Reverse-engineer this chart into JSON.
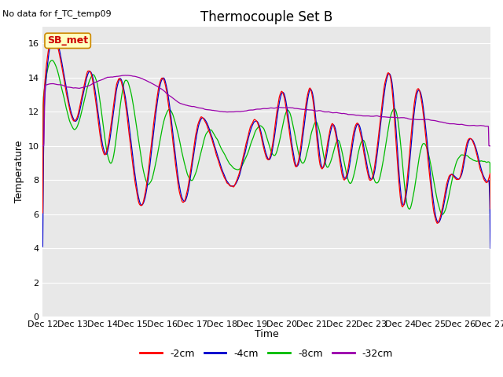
{
  "title": "Thermocouple Set B",
  "xlabel": "Time",
  "ylabel": "Temperature",
  "no_data_text": "No data for f_TC_temp09",
  "sb_met_label": "SB_met",
  "ylim": [
    0,
    17
  ],
  "yticks": [
    0,
    2,
    4,
    6,
    8,
    10,
    12,
    14,
    16
  ],
  "xtick_days": [
    12,
    13,
    14,
    15,
    16,
    17,
    18,
    19,
    20,
    21,
    22,
    23,
    24,
    25,
    26,
    27
  ],
  "colors": {
    "red": "#ff0000",
    "blue": "#0000cc",
    "green": "#00bb00",
    "purple": "#9900aa",
    "bg_plot": "#e8e8e8",
    "bg_fig": "#ffffff",
    "sb_met_bg": "#ffffc0",
    "sb_met_border": "#cc8800",
    "sb_met_text": "#cc0000"
  },
  "legend_items": [
    {
      "label": "-2cm",
      "color": "#ff0000"
    },
    {
      "label": "-4cm",
      "color": "#0000cc"
    },
    {
      "label": "-8cm",
      "color": "#00bb00"
    },
    {
      "label": "-32cm",
      "color": "#9900aa"
    }
  ],
  "title_fontsize": 12,
  "axis_label_fontsize": 9,
  "tick_fontsize": 8,
  "legend_fontsize": 9,
  "no_data_fontsize": 8,
  "sb_met_fontsize": 9
}
